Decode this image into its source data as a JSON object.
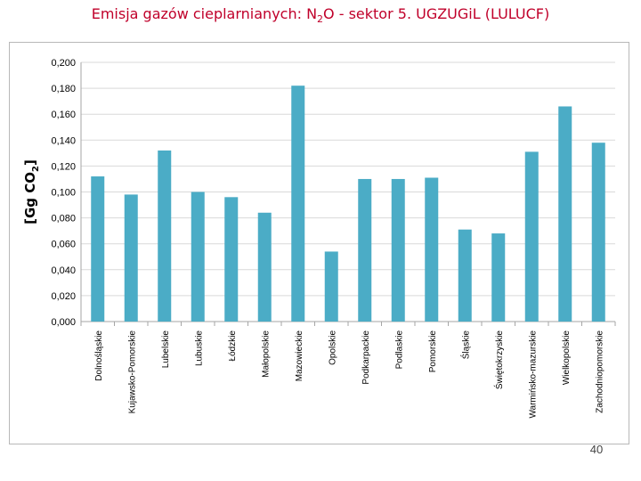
{
  "slide": {
    "title_prefix": "Emisja gazów cieplarnianych: N",
    "title_sub": "2",
    "title_suffix": "O - sektor 5. UGZUGiL (LULUCF)",
    "page_number": "40"
  },
  "colors": {
    "bar": "#4bacc6",
    "title": "#c0002a",
    "grid": "#d9d9d9",
    "axis": "#a6a6a6"
  },
  "chart_data": {
    "type": "bar",
    "ylabel_main": "[Gg CO",
    "ylabel_sub": "2",
    "ylabel_end": "]",
    "ylim": [
      0,
      0.2
    ],
    "yticks": [
      "0,000",
      "0,020",
      "0,040",
      "0,060",
      "0,080",
      "0,100",
      "0,120",
      "0,140",
      "0,160",
      "0,180",
      "0,200"
    ],
    "grid": true,
    "legend": "none",
    "categories": [
      "Dolnośląskie",
      "Kujawsko-Pomorskie",
      "Lubelskie",
      "Lubuskie",
      "Łódzkie",
      "Małopolskie",
      "Mazowieckie",
      "Opolskie",
      "Podkarpackie",
      "Podlaskie",
      "Pomorskie",
      "Śląskie",
      "Świętokrzyskie",
      "Warmińsko-mazurskie",
      "Wielkopolskie",
      "Zachodniopomorskie"
    ],
    "values": [
      0.112,
      0.098,
      0.132,
      0.1,
      0.096,
      0.084,
      0.182,
      0.054,
      0.11,
      0.11,
      0.111,
      0.071,
      0.068,
      0.131,
      0.166,
      0.138
    ]
  }
}
